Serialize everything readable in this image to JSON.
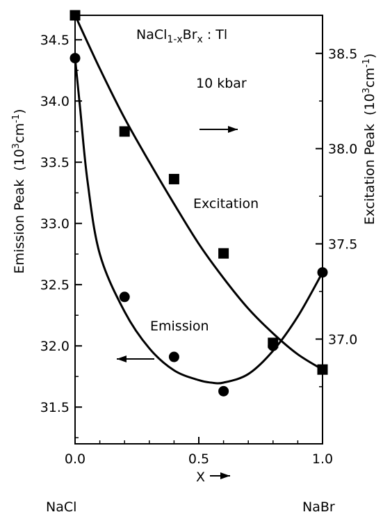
{
  "chart_data": {
    "type": "scatter",
    "x": [
      0.0,
      0.2,
      0.4,
      0.6,
      0.8,
      1.0
    ],
    "xlabel": "X",
    "xlim": [
      0.0,
      1.0
    ],
    "xticks": [
      "0.0",
      "0.5",
      "1.0"
    ],
    "xtick_values": [
      0.0,
      0.5,
      1.0
    ],
    "x_end_labels": {
      "left": "NaCl",
      "right": "NaBr"
    },
    "ylabel_left": {
      "text": "Emission Peak",
      "unit_base": "(10",
      "unit_exp": "3",
      "unit_mid": "cm",
      "unit_exp2": "-1",
      "unit_end": ")"
    },
    "ylabel_right": {
      "text": "Excitation Peak",
      "unit_base": "(10",
      "unit_exp": "3",
      "unit_mid": "cm",
      "unit_exp2": "-1",
      "unit_end": ")"
    },
    "ylim_left": [
      31.2,
      34.7
    ],
    "ylim_right": [
      36.45,
      38.7
    ],
    "yticks_left": [
      "31.5",
      "32.0",
      "32.5",
      "33.0",
      "33.5",
      "34.0",
      "34.5"
    ],
    "ytick_values_left": [
      31.5,
      32.0,
      32.5,
      33.0,
      33.5,
      34.0,
      34.5
    ],
    "yticks_right": [
      "37.0",
      "37.5",
      "38.0",
      "38.5"
    ],
    "ytick_values_right": [
      37.0,
      37.5,
      38.0,
      38.5
    ],
    "grid": false,
    "series": [
      {
        "name": "Emission",
        "axis": "left",
        "marker": "circle",
        "values": [
          34.35,
          32.4,
          31.91,
          31.63,
          32.0,
          32.6
        ],
        "fit": [
          [
            0.0,
            34.35
          ],
          [
            0.02,
            33.95
          ],
          [
            0.05,
            33.35
          ],
          [
            0.1,
            32.75
          ],
          [
            0.2,
            32.28
          ],
          [
            0.3,
            31.98
          ],
          [
            0.4,
            31.8
          ],
          [
            0.5,
            31.72
          ],
          [
            0.55,
            31.7
          ],
          [
            0.6,
            31.7
          ],
          [
            0.7,
            31.77
          ],
          [
            0.8,
            31.96
          ],
          [
            0.9,
            32.24
          ],
          [
            1.0,
            32.6
          ]
        ]
      },
      {
        "name": "Excitation",
        "axis": "right",
        "marker": "square",
        "values": [
          38.7,
          38.09,
          37.84,
          37.45,
          36.98,
          36.84
        ],
        "fit": [
          [
            0.0,
            38.7
          ],
          [
            0.1,
            38.42
          ],
          [
            0.2,
            38.16
          ],
          [
            0.3,
            37.93
          ],
          [
            0.4,
            37.71
          ],
          [
            0.5,
            37.5
          ],
          [
            0.6,
            37.32
          ],
          [
            0.7,
            37.16
          ],
          [
            0.8,
            37.03
          ],
          [
            0.9,
            36.92
          ],
          [
            1.0,
            36.84
          ]
        ]
      }
    ],
    "annotations": {
      "compound": {
        "base": "NaCl",
        "sub": "1-x",
        "mid": "Br",
        "sub2": "x",
        "end": " : Tl"
      },
      "pressure": "10 kbar",
      "excitation_label": "Excitation",
      "emission_label": "Emission",
      "excitation_arrow": "right",
      "emission_arrow": "left",
      "x_axis_arrow": "right"
    }
  }
}
